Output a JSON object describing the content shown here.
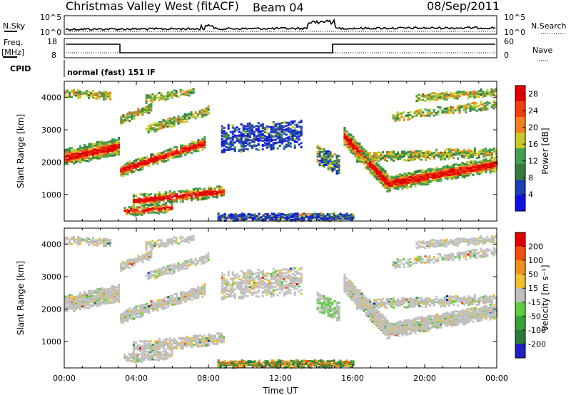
{
  "header": {
    "site": "Christmas Valley West (fitACF)",
    "beam": "Beam 04",
    "date": "08/Sep/2011"
  },
  "aux": {
    "nsky_label": "N.Sky",
    "nsky_ticks": [
      "10^5",
      "10^0"
    ],
    "nsearch_label": "N.Search",
    "nsearch_ticks": [
      "10^5",
      "10^0"
    ],
    "freq_label_1": "Freq.",
    "freq_label_2": "[MHz]",
    "freq_ticks": [
      "18",
      "8"
    ],
    "nave_label": "Nave",
    "nave_ticks": [
      "60",
      "0"
    ],
    "cpid_label": "CPID",
    "cpid_value": "normal (fast) 151 IF"
  },
  "chart_data": [
    {
      "type": "heatmap",
      "panel": "power",
      "ylabel": "Slant Range [km]",
      "yticks": [
        "4000",
        "3000",
        "2000",
        "1000"
      ],
      "ylim": [
        180,
        4500
      ],
      "xticks": [
        "00:00",
        "04:00",
        "08:00",
        "12:00",
        "16:00",
        "20:00",
        "00:00"
      ],
      "xlim_hours": [
        0,
        24
      ],
      "colorbar": {
        "label": "Power [dB]",
        "ticks": [
          "28",
          "24",
          "20",
          "16",
          "12",
          "8",
          "4"
        ],
        "range": [
          0,
          30
        ],
        "colors": [
          "#1010e0",
          "#2040b0",
          "#3a7a40",
          "#40a050",
          "#c8c828",
          "#f08020",
          "#f04010",
          "#e00000"
        ]
      }
    },
    {
      "type": "heatmap",
      "panel": "velocity",
      "ylabel": "Slant Range [km]",
      "yticks": [
        "4000",
        "3000",
        "2000",
        "1000"
      ],
      "ylim": [
        180,
        4500
      ],
      "xticks": [
        "00:00",
        "04:00",
        "08:00",
        "12:00",
        "16:00",
        "20:00",
        "00:00"
      ],
      "xlim_hours": [
        0,
        24
      ],
      "xlabel": "Time UT",
      "colorbar": {
        "label": "Velocity [m s⁻¹]",
        "ticks": [
          "200",
          "100",
          "50",
          "15",
          "-15",
          "-50",
          "-100",
          "-200"
        ],
        "colors": [
          "#2020c0",
          "#2a7a3a",
          "#3aa03a",
          "#60cc40",
          "#c0c0c0",
          "#f0c030",
          "#f09020",
          "#f05010",
          "#e00000"
        ]
      }
    }
  ]
}
